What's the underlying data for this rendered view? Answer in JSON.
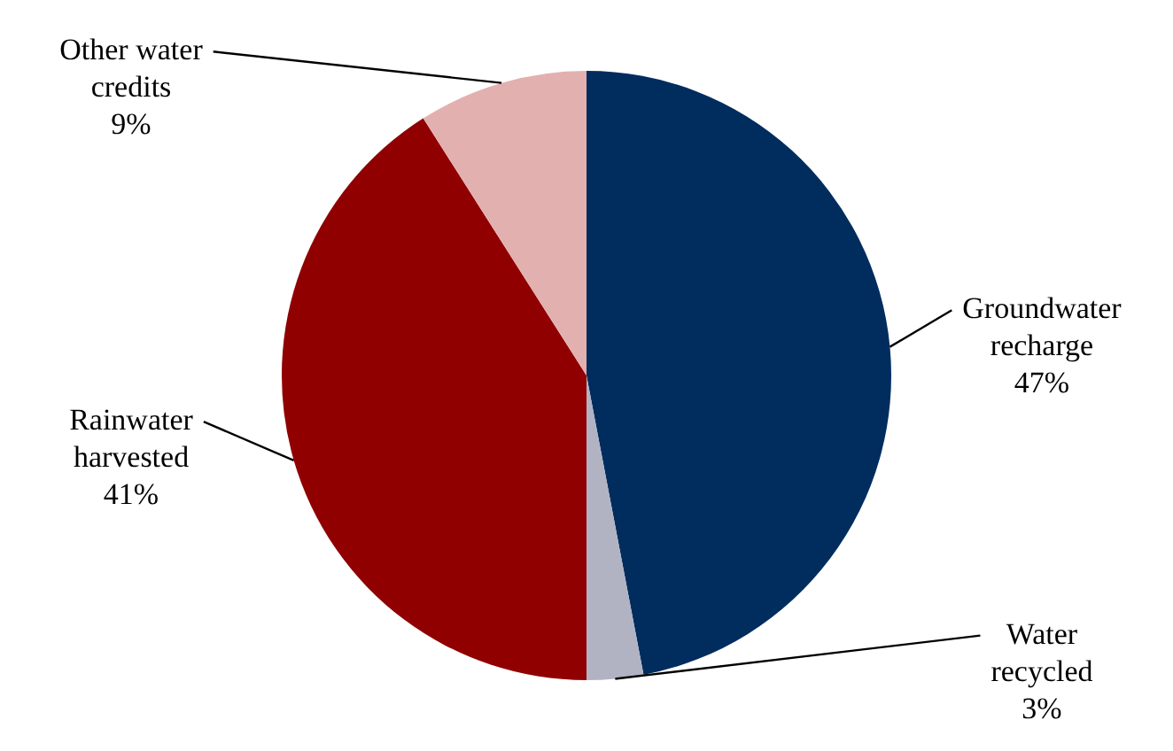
{
  "chart_data": {
    "type": "pie",
    "categories": [
      "Groundwater recharge",
      "Water recycled",
      "Rainwater harvested",
      "Other water credits"
    ],
    "values": [
      47,
      3,
      41,
      9
    ],
    "value_labels": [
      "47%",
      "3%",
      "41%",
      "9%"
    ],
    "colors": [
      "#002d5e",
      "#b1b3c3",
      "#900000",
      "#e3b0b0"
    ],
    "legend": false
  }
}
